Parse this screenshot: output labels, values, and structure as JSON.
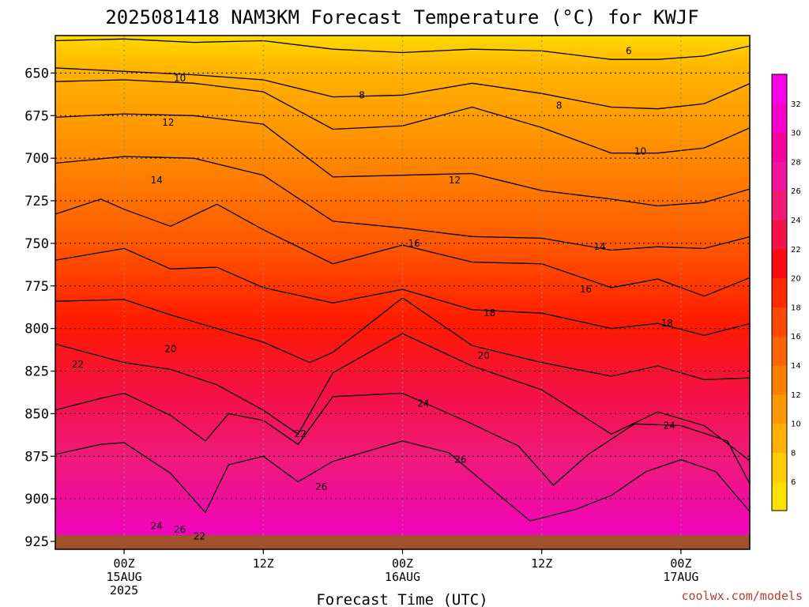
{
  "chart_data": {
    "type": "heatmap",
    "title": "2025081418 NAM3KM Forecast Temperature (°C) for KWJF",
    "xlabel": "Forecast Time (UTC)",
    "ylabel": "",
    "y_ticks": [
      650,
      675,
      700,
      725,
      750,
      775,
      800,
      825,
      850,
      875,
      900,
      925
    ],
    "ylim": [
      925,
      628
    ],
    "x_hours_range": [
      -6,
      54
    ],
    "x_ticks": [
      {
        "hour": 0,
        "lines": [
          "00Z",
          "15AUG",
          "2025"
        ]
      },
      {
        "hour": 12,
        "lines": [
          "12Z"
        ]
      },
      {
        "hour": 24,
        "lines": [
          "00Z",
          "16AUG"
        ]
      },
      {
        "hour": 36,
        "lines": [
          "12Z"
        ]
      },
      {
        "hour": 48,
        "lines": [
          "00Z",
          "17AUG"
        ]
      }
    ],
    "grid": true,
    "colorbar": {
      "placement": "right",
      "labels": [
        6,
        8,
        10,
        12,
        14,
        16,
        18,
        20,
        22,
        24,
        26,
        28,
        30,
        32
      ],
      "colors": [
        "#ffe000",
        "#ffcc00",
        "#ffb000",
        "#ff9800",
        "#ff8000",
        "#ff6400",
        "#ff4800",
        "#ff2a00",
        "#ff0a14",
        "#f5124a",
        "#f01a72",
        "#f0159c",
        "#f5049c",
        "#f600cc",
        "#fb00e8"
      ]
    },
    "contours": [
      {
        "value": 6,
        "points": [
          [
            -6,
            631
          ],
          [
            0,
            630
          ],
          [
            6,
            632
          ],
          [
            12,
            631
          ],
          [
            18,
            636
          ],
          [
            24,
            638
          ],
          [
            30,
            636
          ],
          [
            36,
            637
          ],
          [
            42,
            642
          ],
          [
            46,
            642
          ],
          [
            50,
            640
          ],
          [
            54,
            634
          ]
        ]
      },
      {
        "value": 8,
        "points": [
          [
            -6,
            647
          ],
          [
            0,
            649
          ],
          [
            6,
            651
          ],
          [
            12,
            654
          ],
          [
            18,
            664
          ],
          [
            24,
            663
          ],
          [
            30,
            656
          ],
          [
            36,
            662
          ],
          [
            42,
            670
          ],
          [
            46,
            671
          ],
          [
            50,
            668
          ],
          [
            54,
            656
          ]
        ]
      },
      {
        "value": 10,
        "points": [
          [
            -6,
            655
          ],
          [
            0,
            654
          ],
          [
            6,
            656
          ],
          [
            12,
            661
          ],
          [
            18,
            683
          ],
          [
            24,
            681
          ],
          [
            30,
            670
          ],
          [
            36,
            682
          ],
          [
            42,
            697
          ],
          [
            46,
            697
          ],
          [
            50,
            694
          ],
          [
            54,
            682
          ]
        ]
      },
      {
        "value": 12,
        "points": [
          [
            -6,
            676
          ],
          [
            0,
            674
          ],
          [
            6,
            675
          ],
          [
            12,
            680
          ],
          [
            18,
            711
          ],
          [
            24,
            710
          ],
          [
            30,
            709
          ],
          [
            36,
            719
          ],
          [
            42,
            724
          ],
          [
            46,
            728
          ],
          [
            50,
            726
          ],
          [
            54,
            718
          ]
        ]
      },
      {
        "value": 14,
        "points": [
          [
            -6,
            703
          ],
          [
            0,
            699
          ],
          [
            6,
            700
          ],
          [
            12,
            710
          ],
          [
            18,
            737
          ],
          [
            24,
            741
          ],
          [
            30,
            746
          ],
          [
            36,
            747
          ],
          [
            42,
            754
          ],
          [
            46,
            752
          ],
          [
            50,
            753
          ],
          [
            54,
            746
          ]
        ]
      },
      {
        "value": 16,
        "points": [
          [
            -6,
            733
          ],
          [
            -2,
            724
          ],
          [
            0,
            730
          ],
          [
            4,
            740
          ],
          [
            8,
            727
          ],
          [
            12,
            742
          ],
          [
            18,
            762
          ],
          [
            24,
            751
          ],
          [
            30,
            761
          ],
          [
            36,
            762
          ],
          [
            42,
            776
          ],
          [
            46,
            771
          ],
          [
            50,
            781
          ],
          [
            54,
            770
          ]
        ]
      },
      {
        "value": 18,
        "points": [
          [
            -6,
            760
          ],
          [
            0,
            753
          ],
          [
            4,
            765
          ],
          [
            8,
            764
          ],
          [
            12,
            776
          ],
          [
            18,
            785
          ],
          [
            24,
            777
          ],
          [
            30,
            789
          ],
          [
            36,
            791
          ],
          [
            42,
            800
          ],
          [
            46,
            797
          ],
          [
            50,
            804
          ],
          [
            54,
            797
          ]
        ]
      },
      {
        "value": 20,
        "points": [
          [
            -6,
            784
          ],
          [
            0,
            783
          ],
          [
            4,
            792
          ],
          [
            8,
            800
          ],
          [
            12,
            808
          ],
          [
            16,
            820
          ],
          [
            18,
            814
          ],
          [
            24,
            782
          ],
          [
            30,
            810
          ],
          [
            36,
            820
          ],
          [
            42,
            828
          ],
          [
            46,
            822
          ],
          [
            50,
            830
          ],
          [
            54,
            829
          ]
        ]
      },
      {
        "value": 22,
        "points": [
          [
            -6,
            809
          ],
          [
            0,
            820
          ],
          [
            4,
            824
          ],
          [
            8,
            833
          ],
          [
            12,
            848
          ],
          [
            15,
            862
          ],
          [
            18,
            826
          ],
          [
            24,
            803
          ],
          [
            30,
            822
          ],
          [
            36,
            836
          ],
          [
            42,
            862
          ],
          [
            46,
            849
          ],
          [
            50,
            857
          ],
          [
            54,
            878
          ]
        ]
      },
      {
        "value": 24,
        "points": [
          [
            -6,
            848
          ],
          [
            -2,
            841
          ],
          [
            0,
            838
          ],
          [
            4,
            851
          ],
          [
            7,
            866
          ],
          [
            9,
            850
          ],
          [
            12,
            854
          ],
          [
            15,
            868
          ],
          [
            18,
            840
          ],
          [
            24,
            838
          ],
          [
            30,
            856
          ],
          [
            34,
            869
          ],
          [
            37,
            892
          ],
          [
            40,
            874
          ],
          [
            44,
            856
          ],
          [
            48,
            857
          ],
          [
            52,
            866
          ],
          [
            54,
            892
          ]
        ]
      },
      {
        "value": 26,
        "points": [
          [
            -6,
            874
          ],
          [
            -2,
            868
          ],
          [
            0,
            867
          ],
          [
            4,
            885
          ],
          [
            7,
            908
          ],
          [
            9,
            880
          ],
          [
            12,
            875
          ],
          [
            15,
            890
          ],
          [
            18,
            878
          ],
          [
            22,
            870
          ],
          [
            24,
            866
          ],
          [
            28,
            873
          ],
          [
            32,
            896
          ],
          [
            35,
            913
          ],
          [
            39,
            906
          ],
          [
            42,
            898
          ],
          [
            45,
            884
          ],
          [
            48,
            877
          ],
          [
            51,
            884
          ],
          [
            54,
            908
          ]
        ]
      }
    ],
    "contour_labels": [
      {
        "value": 6,
        "hour": 43.5,
        "p": 637
      },
      {
        "value": 8,
        "hour": 20.5,
        "p": 663
      },
      {
        "value": 8,
        "hour": 37.5,
        "p": 669
      },
      {
        "value": 10,
        "hour": 4.8,
        "p": 653
      },
      {
        "value": 10,
        "hour": 44.5,
        "p": 696
      },
      {
        "value": 12,
        "hour": 3.8,
        "p": 679
      },
      {
        "value": 12,
        "hour": 28.5,
        "p": 713
      },
      {
        "value": 14,
        "hour": 2.8,
        "p": 713
      },
      {
        "value": 14,
        "hour": 41,
        "p": 752
      },
      {
        "value": 16,
        "hour": 25,
        "p": 750
      },
      {
        "value": 16,
        "hour": 39.8,
        "p": 777
      },
      {
        "value": 18,
        "hour": 31.5,
        "p": 791
      },
      {
        "value": 18,
        "hour": 46.8,
        "p": 797
      },
      {
        "value": 20,
        "hour": 4,
        "p": 812
      },
      {
        "value": 20,
        "hour": 31,
        "p": 816
      },
      {
        "value": 22,
        "hour": -4,
        "p": 821
      },
      {
        "value": 22,
        "hour": 15.2,
        "p": 862
      },
      {
        "value": 22,
        "hour": 6.5,
        "p": 922
      },
      {
        "value": 24,
        "hour": 25.8,
        "p": 844
      },
      {
        "value": 24,
        "hour": 47,
        "p": 857
      },
      {
        "value": 24,
        "hour": 2.8,
        "p": 916
      },
      {
        "value": 26,
        "hour": 29,
        "p": 877
      },
      {
        "value": 26,
        "hour": 17,
        "p": 893
      },
      {
        "value": 26,
        "hour": 4.8,
        "p": 918
      }
    ],
    "ground_color": "#a0522d",
    "credit": "coolwx.com/models"
  }
}
